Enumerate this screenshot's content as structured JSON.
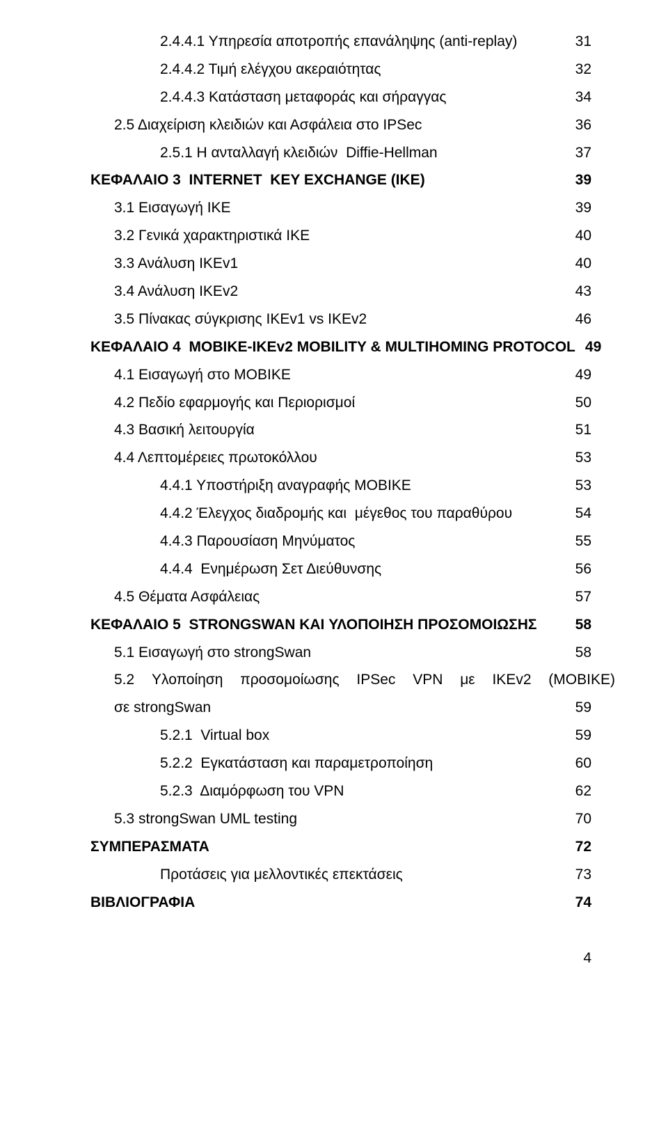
{
  "toc": [
    {
      "id": "i0",
      "indent": 2,
      "bold": false,
      "label": "2.4.4.1 Υπηρεσία αποτροπής επανάληψης (anti-replay)",
      "page": "31"
    },
    {
      "id": "i1",
      "indent": 2,
      "bold": false,
      "label": "2.4.4.2 Τιμή ελέγχου ακεραιότητας",
      "page": "32"
    },
    {
      "id": "i2",
      "indent": 2,
      "bold": false,
      "label": "2.4.4.3 Κατάσταση μεταφοράς και σήραγγας",
      "page": "34"
    },
    {
      "id": "i3",
      "indent": 1,
      "bold": false,
      "label": "2.5 Διαχείριση κλειδιών και Ασφάλεια στο IPSec",
      "page": "36"
    },
    {
      "id": "i4",
      "indent": 2,
      "bold": false,
      "label": "2.5.1 Η ανταλλαγή κλειδιών  Diffie-Hellman",
      "page": "37"
    },
    {
      "id": "i5",
      "indent": 0,
      "bold": true,
      "label": "ΚΕΦΑΛΑΙΟ 3  INTERNET  KEY EXCHANGE (IKE)",
      "page": "39"
    },
    {
      "id": "i6",
      "indent": 1,
      "bold": false,
      "label": "3.1 Εισαγωγή ΙΚΕ",
      "page": "39"
    },
    {
      "id": "i7",
      "indent": 1,
      "bold": false,
      "label": "3.2 Γενικά χαρακτηριστικά IKE",
      "page": "40"
    },
    {
      "id": "i8",
      "indent": 1,
      "bold": false,
      "label": "3.3 Ανάλυση IKEv1",
      "page": "40"
    },
    {
      "id": "i9",
      "indent": 1,
      "bold": false,
      "label": "3.4 Ανάλυση IKEv2",
      "page": "43"
    },
    {
      "id": "i10",
      "indent": 1,
      "bold": false,
      "label": "3.5 Πίνακας σύγκρισης IKEv1 vs IKEv2",
      "page": "46"
    },
    {
      "id": "i11",
      "indent": 0,
      "bold": true,
      "label": "ΚΕΦΑΛΑΙΟ 4  MOBIKE-IKEv2 MOBILITY & MULTIHOMING PROTOCOL",
      "page": "49"
    },
    {
      "id": "i12",
      "indent": 1,
      "bold": false,
      "label": "4.1 Εισαγωγή στο MOBIKE",
      "page": "49"
    },
    {
      "id": "i13",
      "indent": 1,
      "bold": false,
      "label": "4.2 Πεδίο εφαρμογής και Περιορισμοί",
      "page": "50"
    },
    {
      "id": "i14",
      "indent": 1,
      "bold": false,
      "label": "4.3 Βασική λειτουργία",
      "page": "51"
    },
    {
      "id": "i15",
      "indent": 1,
      "bold": false,
      "label": "4.4 Λεπτομέρειες πρωτοκόλλου",
      "page": "53"
    },
    {
      "id": "i16",
      "indent": 2,
      "bold": false,
      "label": "4.4.1 Υποστήριξη αναγραφής MOBIKE",
      "page": "53"
    },
    {
      "id": "i17",
      "indent": 2,
      "bold": false,
      "label": "4.4.2 Έλεγχος διαδρομής και  μέγεθος του παραθύρου",
      "page": "54"
    },
    {
      "id": "i18",
      "indent": 2,
      "bold": false,
      "label": "4.4.3 Παρουσίαση Μηνύματος",
      "page": "55"
    },
    {
      "id": "i19",
      "indent": 2,
      "bold": false,
      "label": "4.4.4  Ενημέρωση Σετ Διεύθυνσης",
      "page": "56"
    },
    {
      "id": "i20",
      "indent": 1,
      "bold": false,
      "label": "4.5 Θέματα Ασφάλειας",
      "page": "57"
    },
    {
      "id": "i21",
      "indent": 0,
      "bold": true,
      "label": "ΚΕΦΑΛΑΙΟ 5  STRONGSWAN KAI ΥΛΟΠΟΙΗΣΗ ΠΡΟΣΟΜΟΙΩΣΗΣ",
      "page": "58"
    },
    {
      "id": "i22",
      "indent": 1,
      "bold": false,
      "label": "5.1 Εισαγωγή στο strongSwan",
      "page": "58"
    },
    {
      "id": "i23",
      "indent": 1,
      "bold": false,
      "justify": true,
      "words": [
        "5.2",
        "Υλοποίηση",
        "προσομοίωσης",
        "IPSec",
        "VPN",
        "με",
        "IKEv2",
        "(MOBIKE)"
      ],
      "page": null
    },
    {
      "id": "i24",
      "indent": 1,
      "bold": false,
      "label": "σε strongSwan",
      "page": "59"
    },
    {
      "id": "i25",
      "indent": 2,
      "bold": false,
      "label": "5.2.1  Virtual box",
      "page": "59"
    },
    {
      "id": "i26",
      "indent": 2,
      "bold": false,
      "label": "5.2.2  Εγκατάσταση και παραμετροποίηση",
      "page": "60"
    },
    {
      "id": "i27",
      "indent": 2,
      "bold": false,
      "label": "5.2.3  Διαμόρφωση του VPN",
      "page": "62"
    },
    {
      "id": "i28",
      "indent": 1,
      "bold": false,
      "label": "5.3 strongSwan UML testing",
      "page": "70"
    },
    {
      "id": "i29",
      "indent": 0,
      "bold": true,
      "label": "ΣΥΜΠΕΡΑΣΜΑΤΑ",
      "page": "72"
    },
    {
      "id": "i30",
      "indent": 2,
      "bold": false,
      "label": "Προτάσεις για μελλοντικές επεκτάσεις",
      "page": "73"
    },
    {
      "id": "i31",
      "indent": 0,
      "bold": true,
      "label": "ΒΙΒΛΙΟΓΡΑΦΙΑ",
      "page": "74"
    }
  ],
  "footer_page": "4"
}
